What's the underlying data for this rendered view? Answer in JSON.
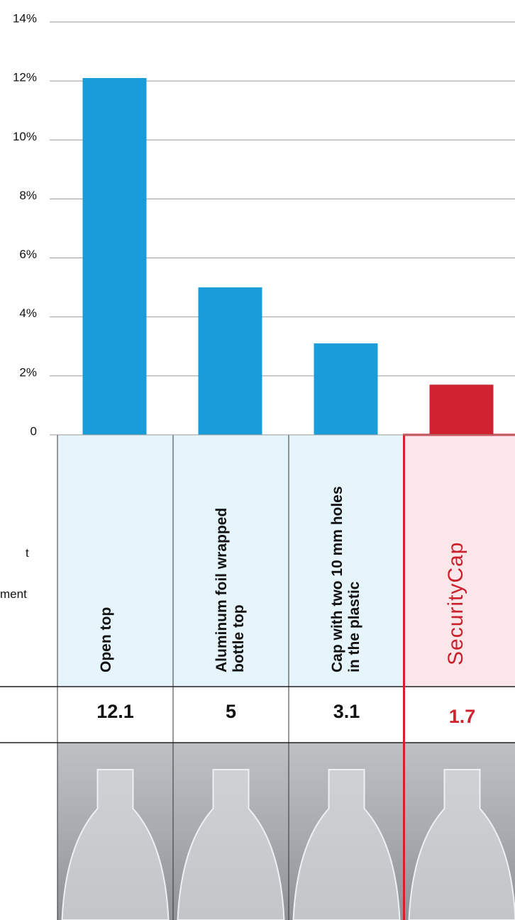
{
  "chart_data": {
    "type": "bar",
    "categories": [
      "Open top",
      "Aluminum foil wrapped bottle top",
      "Cap with two 10 mm holes in the plastic",
      "SecurityCap"
    ],
    "values": [
      12.1,
      5,
      3.1,
      1.7
    ],
    "colors": [
      "#1a9cd8",
      "#1a9cd8",
      "#1a9cd8",
      "#d0222f"
    ],
    "ylim": [
      0,
      14
    ],
    "yticks": [
      0,
      {
        "value": 2,
        "label": "2%"
      },
      {
        "value": 4,
        "label": "4%"
      },
      {
        "value": 6,
        "label": "6%"
      },
      {
        "value": 8,
        "label": "8%"
      },
      {
        "value": 10,
        "label": "10%"
      },
      {
        "value": 12,
        "label": "12%"
      },
      {
        "value": 14,
        "label": "14%"
      }
    ],
    "grid": true,
    "row_header_fragments": [
      "t",
      "ment"
    ]
  }
}
